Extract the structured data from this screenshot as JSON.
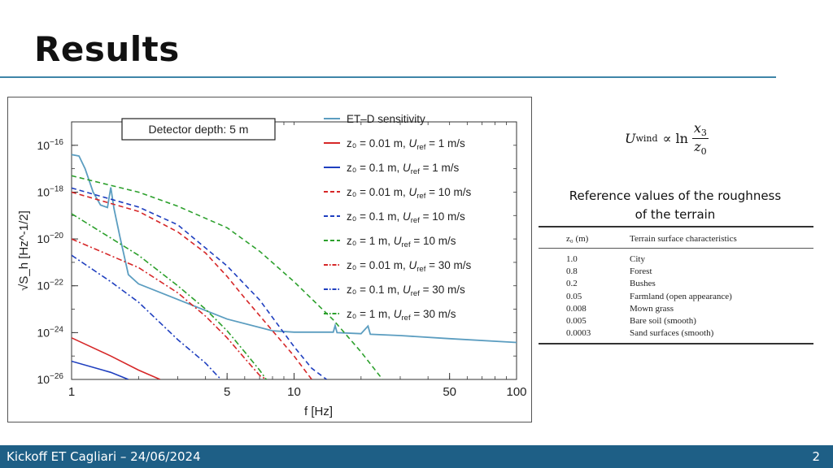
{
  "slide": {
    "title": "Results",
    "footer": "Kickoff ET Cagliari – 24/06/2024",
    "page_number": "2"
  },
  "formula": {
    "lhs": "U",
    "lhs_sub": "wind",
    "operator": "∝ ln",
    "num": "x",
    "num_sub": "3",
    "den": "z",
    "den_sub": "0"
  },
  "reference": {
    "caption_line1": "Reference values of the roughness",
    "caption_line2": "of the terrain",
    "table": {
      "headers": [
        "z₀ (m)",
        "Terrain surface characteristics"
      ],
      "rows": [
        [
          "1.0",
          "City"
        ],
        [
          "0.8",
          "Forest"
        ],
        [
          "0.2",
          "Bushes"
        ],
        [
          "0.05",
          "Farmland (open appearance)"
        ],
        [
          "0.008",
          "Mown grass"
        ],
        [
          "0.005",
          "Bare soil (smooth)"
        ],
        [
          "0.0003",
          "Sand surfaces (smooth)"
        ]
      ]
    }
  },
  "chart_data": {
    "type": "line",
    "xlabel": "f [Hz]",
    "ylabel": "√S_h [Hz^-1/2]",
    "x_scale": "log",
    "y_scale": "log",
    "xlim": [
      1,
      100
    ],
    "ylim": [
      1e-26,
      1e-15
    ],
    "x_ticks": [
      {
        "value": 1,
        "label": "1"
      },
      {
        "value": 5,
        "label": "5"
      },
      {
        "value": 10,
        "label": "10"
      },
      {
        "value": 50,
        "label": "50"
      },
      {
        "value": 100,
        "label": "100"
      }
    ],
    "y_ticks": [
      {
        "exp": -16,
        "base": "10",
        "sup": "−16"
      },
      {
        "exp": -18,
        "base": "10",
        "sup": "−18"
      },
      {
        "exp": -20,
        "base": "10",
        "sup": "−20"
      },
      {
        "exp": -22,
        "base": "10",
        "sup": "−22"
      },
      {
        "exp": -24,
        "base": "10",
        "sup": "−24"
      },
      {
        "exp": -26,
        "base": "10",
        "sup": "−26"
      }
    ],
    "annotation": "Detector depth: 5 m",
    "legend_position": "top-right",
    "series": [
      {
        "name": "ET–D sensitivity",
        "legend": [
          "ET–D sensitivity"
        ],
        "color": "#5b9dc0",
        "dash": "solid",
        "points": [
          [
            1,
            4e-17
          ],
          [
            1.08,
            3.5e-17
          ],
          [
            1.15,
            1e-17
          ],
          [
            1.25,
            1e-18
          ],
          [
            1.35,
            2.8e-19
          ],
          [
            1.45,
            2.2e-19
          ],
          [
            1.5,
            1.6e-18
          ],
          [
            1.55,
            2e-19
          ],
          [
            1.65,
            1.2e-20
          ],
          [
            1.8,
            3e-22
          ],
          [
            2,
            1.2e-22
          ],
          [
            3,
            2.6e-23
          ],
          [
            5,
            3.8e-24
          ],
          [
            8,
            1.2e-24
          ],
          [
            10,
            1.05e-24
          ],
          [
            15,
            1.05e-24
          ],
          [
            15.3,
            2e-24
          ],
          [
            15.6,
            1e-24
          ],
          [
            20,
            9e-25
          ],
          [
            21.5,
            1.9e-24
          ],
          [
            22,
            8.5e-25
          ],
          [
            30,
            7.5e-25
          ],
          [
            50,
            5.5e-25
          ],
          [
            100,
            3.8e-25
          ]
        ]
      },
      {
        "name": "z0 = 0.01 m, Uref = 1 m/s",
        "legend": [
          "z₀ = 0.01 m, ",
          "U",
          "ref",
          " = 1 m/s"
        ],
        "color": "#d62728",
        "dash": "solid",
        "points": [
          [
            1,
            6e-25
          ],
          [
            1.5,
            1e-25
          ],
          [
            2,
            2.5e-26
          ],
          [
            2.5,
            1e-26
          ]
        ]
      },
      {
        "name": "z0 = 0.1 m, Uref = 1 m/s",
        "legend": [
          "z₀ = 0.1 m, ",
          "U",
          "ref",
          " = 1 m/s"
        ],
        "color": "#1f3fbf",
        "dash": "solid",
        "points": [
          [
            1,
            6e-26
          ],
          [
            1.5,
            2e-26
          ],
          [
            1.8,
            1e-26
          ]
        ]
      },
      {
        "name": "z0 = 0.01 m, Uref = 10 m/s",
        "legend": [
          "z₀ = 0.01 m, ",
          "U",
          "ref",
          " = 10 m/s"
        ],
        "color": "#d62728",
        "dash": "dashed",
        "points": [
          [
            1,
            1e-18
          ],
          [
            2,
            1.5e-19
          ],
          [
            3,
            2e-20
          ],
          [
            4,
            2.5e-21
          ],
          [
            5,
            2.5e-22
          ],
          [
            6,
            3e-23
          ],
          [
            8,
            1.2e-24
          ],
          [
            10,
            1e-25
          ],
          [
            12,
            1e-26
          ]
        ]
      },
      {
        "name": "z0 = 0.1 m, Uref = 10 m/s",
        "legend": [
          "z₀ = 0.1 m, ",
          "U",
          "ref",
          " = 10 m/s"
        ],
        "color": "#1f3fbf",
        "dash": "dashed",
        "points": [
          [
            1,
            1.5e-18
          ],
          [
            2,
            2.3e-19
          ],
          [
            3,
            4e-20
          ],
          [
            5,
            7e-22
          ],
          [
            7,
            2.5e-23
          ],
          [
            10,
            2.5e-25
          ],
          [
            12,
            3e-26
          ],
          [
            14,
            1e-26
          ]
        ]
      },
      {
        "name": "z0 = 1 m, Uref = 10 m/s",
        "legend": [
          "z₀ = 1 m, ",
          "U",
          "ref",
          " = 10 m/s"
        ],
        "color": "#2ca02c",
        "dash": "dashed",
        "points": [
          [
            1,
            5e-18
          ],
          [
            2,
            1e-18
          ],
          [
            3,
            2.5e-19
          ],
          [
            5,
            3e-20
          ],
          [
            7,
            3e-21
          ],
          [
            10,
            1.5e-22
          ],
          [
            15,
            3.5e-24
          ],
          [
            20,
            1.5e-25
          ],
          [
            25,
            1e-26
          ]
        ]
      },
      {
        "name": "z0 = 0.01 m, Uref = 30 m/s",
        "legend": [
          "z₀ = 0.01 m, ",
          "U",
          "ref",
          " = 30 m/s"
        ],
        "color": "#d62728",
        "dash": "dashdot",
        "points": [
          [
            1,
            1e-20
          ],
          [
            2,
            6e-22
          ],
          [
            3,
            5e-23
          ],
          [
            4,
            5e-24
          ],
          [
            5,
            6e-25
          ],
          [
            6,
            8e-26
          ],
          [
            7,
            1.5e-26
          ],
          [
            7.5,
            1e-26
          ]
        ]
      },
      {
        "name": "z0 = 0.1 m, Uref = 30 m/s",
        "legend": [
          "z₀ = 0.1 m, ",
          "U",
          "ref",
          " = 30 m/s"
        ],
        "color": "#1f3fbf",
        "dash": "dashdot",
        "points": [
          [
            1,
            2e-21
          ],
          [
            1.5,
            1.5e-22
          ],
          [
            2,
            2e-23
          ],
          [
            3,
            5e-25
          ],
          [
            4,
            5e-26
          ],
          [
            4.5,
            1.5e-26
          ],
          [
            4.7,
            1e-26
          ]
        ]
      },
      {
        "name": "z0 = 1 m, Uref = 30 m/s",
        "legend": [
          "z₀ = 1 m, ",
          "U",
          "ref",
          " = 30 m/s"
        ],
        "color": "#2ca02c",
        "dash": "dashdot",
        "points": [
          [
            1,
            1.2e-19
          ],
          [
            2,
            2e-21
          ],
          [
            3,
            1e-22
          ],
          [
            4,
            1e-23
          ],
          [
            5,
            1.2e-24
          ],
          [
            6,
            1.5e-25
          ],
          [
            7,
            2.5e-26
          ],
          [
            7.5,
            1e-26
          ]
        ]
      }
    ]
  }
}
